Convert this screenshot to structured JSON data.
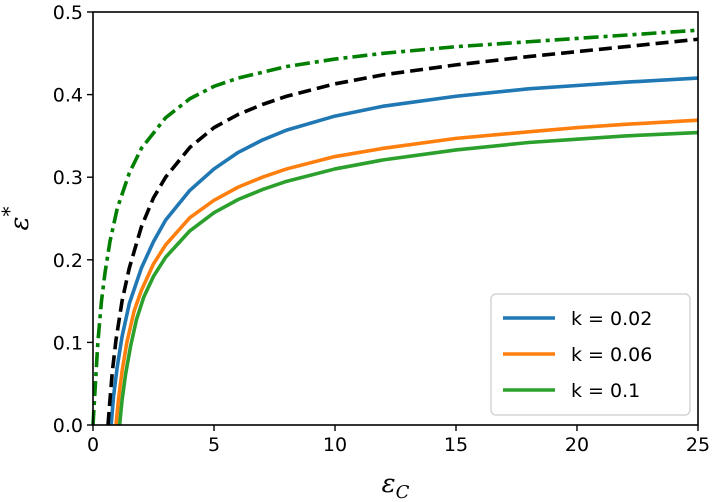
{
  "chart_data": {
    "type": "line",
    "title": "",
    "xlabel": {
      "main": "ε",
      "sub": "C"
    },
    "ylabel": {
      "main": "ε",
      "sup": "*"
    },
    "xlim": [
      0,
      25
    ],
    "ylim": [
      0,
      0.5
    ],
    "xticks": [
      0,
      5,
      10,
      15,
      20,
      25
    ],
    "xtick_labels": [
      "0",
      "5",
      "10",
      "15",
      "20",
      "25"
    ],
    "yticks": [
      0.0,
      0.1,
      0.2,
      0.3,
      0.4,
      0.5
    ],
    "ytick_labels": [
      "0.0",
      "0.1",
      "0.2",
      "0.3",
      "0.4",
      "0.5"
    ],
    "grid": false,
    "legend_position": "lower-right",
    "series": [
      {
        "name": "k = 0.02",
        "color": "#1f77b4",
        "style": "solid",
        "in_legend": true,
        "x": [
          0.75,
          0.85,
          1.0,
          1.2,
          1.5,
          2.0,
          2.5,
          3.0,
          4.0,
          5.0,
          6.0,
          7.0,
          8.0,
          10.0,
          12.0,
          15.0,
          18.0,
          20.0,
          22.0,
          25.0
        ],
        "y": [
          0.0,
          0.035,
          0.07,
          0.107,
          0.147,
          0.19,
          0.222,
          0.248,
          0.284,
          0.31,
          0.33,
          0.345,
          0.357,
          0.374,
          0.386,
          0.398,
          0.407,
          0.411,
          0.415,
          0.42
        ]
      },
      {
        "name": "k = 0.06",
        "color": "#ff7f0e",
        "style": "solid",
        "in_legend": true,
        "x": [
          0.95,
          1.05,
          1.2,
          1.4,
          1.7,
          2.0,
          2.5,
          3.0,
          4.0,
          5.0,
          6.0,
          7.0,
          8.0,
          10.0,
          12.0,
          15.0,
          18.0,
          20.0,
          22.0,
          25.0
        ],
        "y": [
          0.0,
          0.03,
          0.065,
          0.1,
          0.138,
          0.163,
          0.195,
          0.218,
          0.251,
          0.272,
          0.288,
          0.3,
          0.31,
          0.325,
          0.335,
          0.347,
          0.355,
          0.36,
          0.364,
          0.369
        ]
      },
      {
        "name": "k = 0.1",
        "color": "#2ca02c",
        "style": "solid",
        "in_legend": true,
        "x": [
          1.1,
          1.2,
          1.35,
          1.55,
          1.8,
          2.1,
          2.5,
          3.0,
          4.0,
          5.0,
          6.0,
          7.0,
          8.0,
          10.0,
          12.0,
          15.0,
          18.0,
          20.0,
          22.0,
          25.0
        ],
        "y": [
          0.0,
          0.03,
          0.062,
          0.095,
          0.128,
          0.155,
          0.18,
          0.203,
          0.235,
          0.257,
          0.273,
          0.285,
          0.295,
          0.31,
          0.321,
          0.333,
          0.342,
          0.346,
          0.35,
          0.354
        ]
      },
      {
        "name": "",
        "color": "#000000",
        "style": "dashed",
        "in_legend": false,
        "x": [
          0.62,
          0.7,
          0.8,
          0.95,
          1.2,
          1.5,
          2.0,
          2.5,
          3.0,
          4.0,
          5.0,
          6.0,
          7.0,
          8.0,
          10.0,
          12.0,
          15.0,
          18.0,
          20.0,
          22.0,
          25.0
        ],
        "y": [
          0.0,
          0.03,
          0.065,
          0.103,
          0.15,
          0.19,
          0.24,
          0.275,
          0.3,
          0.336,
          0.36,
          0.376,
          0.388,
          0.398,
          0.413,
          0.424,
          0.436,
          0.446,
          0.452,
          0.458,
          0.467
        ]
      },
      {
        "name": "",
        "color": "#007f00",
        "style": "dashdot",
        "in_legend": false,
        "x": [
          0.0,
          0.1,
          0.2,
          0.35,
          0.5,
          0.7,
          1.0,
          1.5,
          2.0,
          3.0,
          4.0,
          5.0,
          6.0,
          8.0,
          10.0,
          12.0,
          15.0,
          18.0,
          20.0,
          22.0,
          25.0
        ],
        "y": [
          0.0,
          0.05,
          0.1,
          0.15,
          0.185,
          0.222,
          0.262,
          0.305,
          0.335,
          0.372,
          0.395,
          0.41,
          0.42,
          0.434,
          0.443,
          0.45,
          0.458,
          0.464,
          0.468,
          0.472,
          0.478
        ]
      }
    ]
  }
}
